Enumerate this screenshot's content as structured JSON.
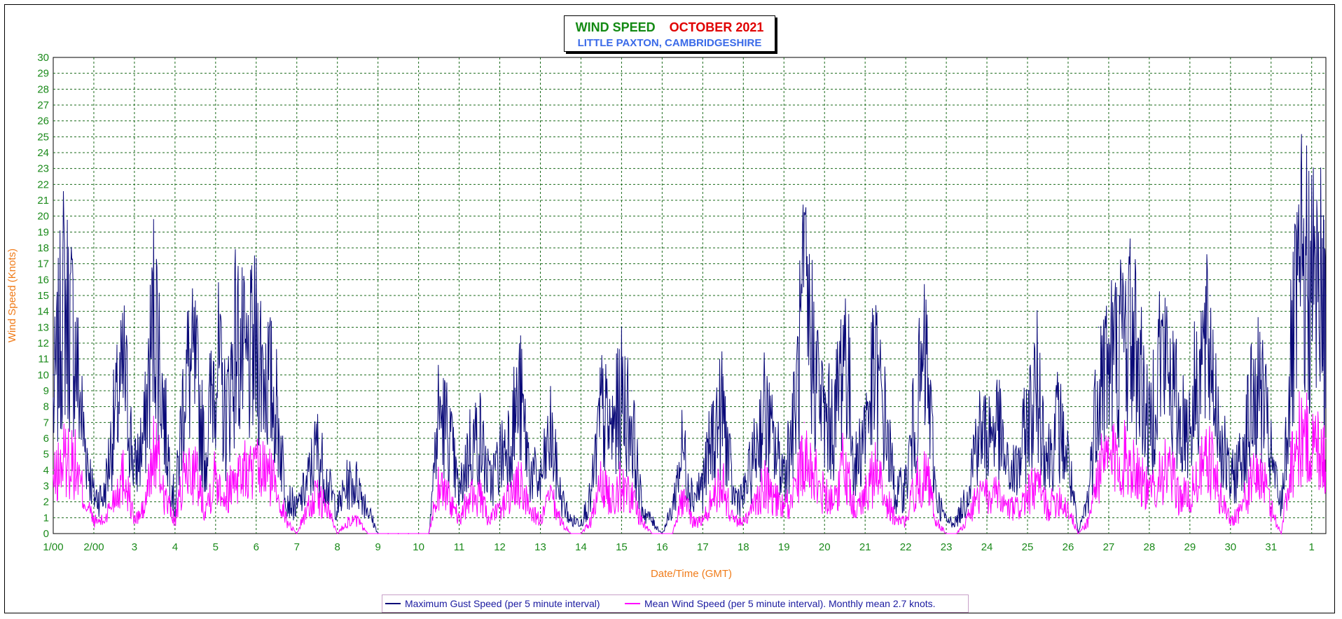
{
  "colors": {
    "gust": "#0a0a78",
    "mean": "#ff00ff",
    "grid": "#1a6a1a",
    "tick_text": "#1a8a1a",
    "axis_title": "#f07c1a",
    "title_main": "#138a13",
    "title_month": "#e00000",
    "title_sub": "#3a6ae8"
  },
  "title": {
    "main": "WIND SPEED",
    "month": "OCTOBER 2021",
    "sub": "LITTLE PAXTON, CAMBRIDGESHIRE"
  },
  "legend": {
    "gust_label": "Maximum Gust Speed (per 5 minute interval)",
    "mean_label": "Mean Wind Speed (per 5 minute interval). Monthly mean 2.7 knots."
  },
  "chart_data": {
    "type": "line",
    "title": "WIND SPEED OCTOBER 2021",
    "subtitle": "LITTLE PAXTON, CAMBRIDGESHIRE",
    "xlabel": "Date/Time (GMT)",
    "ylabel": "Wind Speed (Knots)",
    "ylim": [
      0,
      30
    ],
    "xlim_days": [
      1,
      32.35
    ],
    "y_ticks": [
      0,
      1,
      2,
      3,
      4,
      5,
      6,
      7,
      8,
      9,
      10,
      11,
      12,
      13,
      14,
      15,
      16,
      17,
      18,
      19,
      20,
      21,
      22,
      23,
      24,
      25,
      26,
      27,
      28,
      29,
      30
    ],
    "x_tick_labels": [
      "1/00",
      "2/00",
      "3",
      "4",
      "5",
      "6",
      "7",
      "8",
      "9",
      "10",
      "11",
      "12",
      "13",
      "14",
      "15",
      "16",
      "17",
      "18",
      "19",
      "20",
      "21",
      "22",
      "23",
      "24",
      "25",
      "26",
      "27",
      "28",
      "29",
      "30",
      "31",
      "1"
    ],
    "grid": true,
    "legend_position": "bottom",
    "series": [
      {
        "name": "Maximum Gust Speed (per 5 minute interval)",
        "x": [
          1.0,
          1.25,
          1.5,
          1.75,
          2.0,
          2.25,
          2.5,
          2.75,
          3.0,
          3.25,
          3.5,
          3.75,
          4.0,
          4.25,
          4.5,
          4.75,
          5.0,
          5.25,
          5.5,
          5.75,
          6.0,
          6.25,
          6.5,
          6.75,
          7.0,
          7.25,
          7.5,
          7.75,
          8.0,
          8.25,
          8.5,
          8.75,
          9.0,
          9.25,
          9.5,
          9.75,
          10.0,
          10.25,
          10.5,
          10.75,
          11.0,
          11.25,
          11.5,
          11.75,
          12.0,
          12.25,
          12.5,
          12.75,
          13.0,
          13.25,
          13.5,
          13.75,
          14.0,
          14.25,
          14.5,
          14.75,
          15.0,
          15.25,
          15.5,
          15.75,
          16.0,
          16.25,
          16.5,
          16.75,
          17.0,
          17.25,
          17.5,
          17.75,
          18.0,
          18.25,
          18.5,
          18.75,
          19.0,
          19.25,
          19.5,
          19.75,
          20.0,
          20.25,
          20.5,
          20.75,
          21.0,
          21.25,
          21.5,
          21.75,
          22.0,
          22.25,
          22.5,
          22.75,
          23.0,
          23.25,
          23.5,
          23.75,
          24.0,
          24.25,
          24.5,
          24.75,
          25.0,
          25.25,
          25.5,
          25.75,
          26.0,
          26.25,
          26.5,
          26.75,
          27.0,
          27.25,
          27.5,
          27.75,
          28.0,
          28.25,
          28.5,
          28.75,
          29.0,
          29.25,
          29.5,
          29.75,
          30.0,
          30.25,
          30.5,
          30.75,
          31.0,
          31.25,
          31.5,
          31.75,
          32.0,
          32.25,
          32.35
        ],
        "values": [
          10,
          19,
          16,
          8,
          3,
          3,
          9,
          13,
          5,
          8,
          19,
          9,
          2,
          13,
          13,
          6,
          15,
          9,
          16,
          13,
          15,
          13,
          10,
          3,
          2,
          4,
          7,
          4,
          2,
          4,
          4,
          2,
          0,
          0,
          0,
          0,
          0,
          0,
          10,
          8,
          3,
          7,
          8,
          4,
          6,
          8,
          11,
          5,
          4,
          8,
          3,
          1,
          1,
          3,
          10,
          8,
          11,
          9,
          2,
          1,
          0,
          2,
          7,
          3,
          4,
          8,
          10,
          3,
          3,
          6,
          10,
          7,
          5,
          9,
          19,
          14,
          9,
          9,
          16,
          5,
          9,
          13,
          9,
          3,
          4,
          10,
          14,
          3,
          1,
          1,
          3,
          8,
          8,
          9,
          5,
          5,
          9,
          12,
          6,
          9,
          6,
          0,
          3,
          13,
          14,
          15,
          17,
          14,
          8,
          15,
          13,
          9,
          9,
          14,
          15,
          8,
          4,
          6,
          10,
          12,
          6,
          2,
          14,
          21,
          20,
          20,
          15
        ]
      },
      {
        "name": "Mean Wind Speed (per 5 minute interval). Monthly mean 2.7 knots.",
        "x": [
          1.0,
          1.25,
          1.5,
          1.75,
          2.0,
          2.25,
          2.5,
          2.75,
          3.0,
          3.25,
          3.5,
          3.75,
          4.0,
          4.25,
          4.5,
          4.75,
          5.0,
          5.25,
          5.5,
          5.75,
          6.0,
          6.25,
          6.5,
          6.75,
          7.0,
          7.25,
          7.5,
          7.75,
          8.0,
          8.25,
          8.5,
          8.75,
          9.0,
          9.25,
          9.5,
          9.75,
          10.0,
          10.25,
          10.5,
          10.75,
          11.0,
          11.25,
          11.5,
          11.75,
          12.0,
          12.25,
          12.5,
          12.75,
          13.0,
          13.25,
          13.5,
          13.75,
          14.0,
          14.25,
          14.5,
          14.75,
          15.0,
          15.25,
          15.5,
          15.75,
          16.0,
          16.25,
          16.5,
          16.75,
          17.0,
          17.25,
          17.5,
          17.75,
          18.0,
          18.25,
          18.5,
          18.75,
          19.0,
          19.25,
          19.5,
          19.75,
          20.0,
          20.25,
          20.5,
          20.75,
          21.0,
          21.25,
          21.5,
          21.75,
          22.0,
          22.25,
          22.5,
          22.75,
          23.0,
          23.25,
          23.5,
          23.75,
          24.0,
          24.25,
          24.5,
          24.75,
          25.0,
          25.25,
          25.5,
          25.75,
          26.0,
          26.25,
          26.5,
          26.75,
          27.0,
          27.25,
          27.5,
          27.75,
          28.0,
          28.25,
          28.5,
          28.75,
          29.0,
          29.25,
          29.5,
          29.75,
          30.0,
          30.25,
          30.5,
          30.75,
          31.0,
          31.25,
          31.5,
          31.75,
          32.0,
          32.25,
          32.35
        ],
        "values": [
          4,
          6,
          6,
          3,
          1,
          1,
          3,
          5,
          1,
          2,
          7,
          3,
          1,
          5,
          5,
          2,
          5,
          3,
          5,
          5,
          5,
          5,
          4,
          1,
          0,
          2,
          3,
          2,
          0,
          1,
          1,
          0,
          0,
          0,
          0,
          0,
          0,
          0,
          4,
          3,
          1,
          3,
          3,
          1,
          2,
          3,
          4,
          2,
          1,
          3,
          1,
          0,
          0,
          1,
          4,
          3,
          4,
          3,
          1,
          0,
          0,
          0,
          3,
          1,
          1,
          3,
          4,
          1,
          1,
          2,
          4,
          3,
          2,
          3,
          7,
          5,
          3,
          3,
          6,
          2,
          3,
          5,
          3,
          1,
          1,
          4,
          5,
          1,
          0,
          0,
          1,
          3,
          3,
          3,
          2,
          2,
          3,
          4,
          2,
          3,
          2,
          0,
          1,
          5,
          6,
          6,
          6,
          5,
          3,
          5,
          5,
          3,
          3,
          5,
          6,
          3,
          1,
          2,
          4,
          5,
          2,
          0,
          6,
          8,
          7,
          7,
          6
        ]
      }
    ]
  }
}
